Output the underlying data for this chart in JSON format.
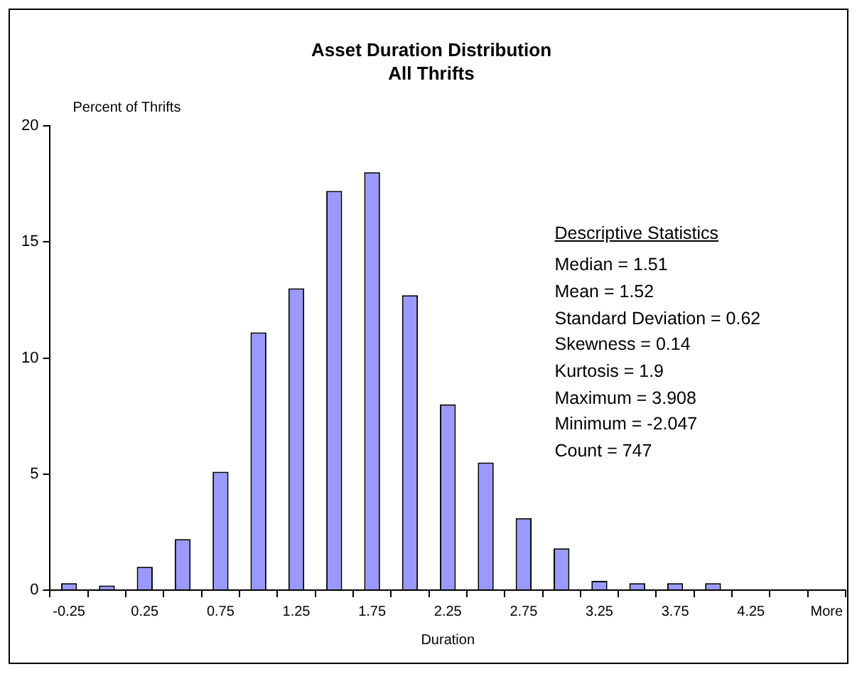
{
  "chart_data": {
    "type": "bar",
    "title": [
      "Asset Duration Distribution",
      "All Thrifts"
    ],
    "xlabel": "Duration",
    "ylabel": "Percent of Thrifts",
    "categories": [
      "-0.25",
      null,
      "0.25",
      null,
      "0.75",
      null,
      "1.25",
      null,
      "1.75",
      null,
      "2.25",
      null,
      "2.75",
      null,
      "3.25",
      null,
      "3.75",
      null,
      "4.25",
      null,
      "More"
    ],
    "values": [
      0.3,
      0.2,
      1.0,
      2.2,
      5.1,
      11.1,
      13.0,
      17.2,
      18.0,
      12.7,
      8.0,
      5.5,
      3.1,
      1.8,
      0.4,
      0.3,
      0.3,
      0.3,
      0,
      0,
      0
    ],
    "color": "#9999ff",
    "ylim": [
      0,
      20
    ],
    "yticks": [
      0,
      5,
      10,
      15,
      20
    ],
    "grid": false,
    "legend": false,
    "annotations": [
      "Descriptive Statistics",
      "Median = 1.51",
      "Mean = 1.52",
      "Standard Deviation = 0.62",
      "Skewness = 0.14",
      "Kurtosis = 1.9",
      "Maximum = 3.908",
      "Minimum = -2.047",
      "Count = 747"
    ]
  }
}
